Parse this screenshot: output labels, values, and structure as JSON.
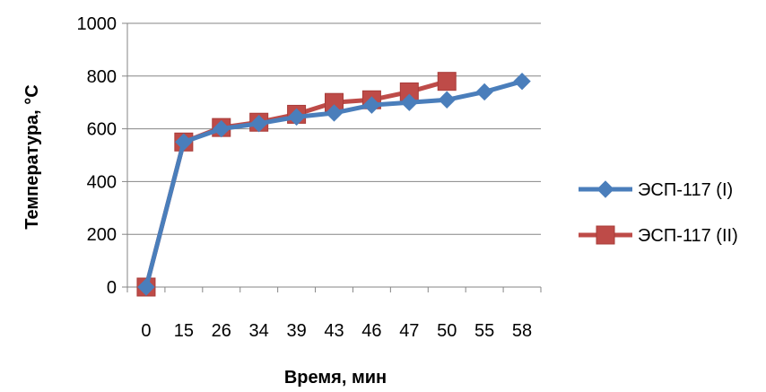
{
  "chart_data": {
    "type": "line",
    "categories": [
      "0",
      "15",
      "26",
      "34",
      "39",
      "43",
      "46",
      "47",
      "50",
      "55",
      "58"
    ],
    "xlabel": "Время, мин",
    "ylabel": "Температура, °С",
    "ylim": [
      0,
      1000
    ],
    "yticks": [
      "0",
      "200",
      "400",
      "600",
      "800",
      "1000"
    ],
    "grid": "horizontal",
    "legend_position": "right",
    "series": [
      {
        "name": "ЭСП-117 (I)",
        "color": "#4A7EBB",
        "marker": "diamond",
        "values": [
          0,
          550,
          600,
          620,
          645,
          660,
          690,
          700,
          710,
          740,
          780
        ]
      },
      {
        "name": "ЭСП-117 (II)",
        "color": "#BE4B48",
        "marker": "square",
        "values": [
          0,
          550,
          605,
          625,
          655,
          700,
          710,
          740,
          780,
          null,
          null
        ]
      }
    ]
  }
}
